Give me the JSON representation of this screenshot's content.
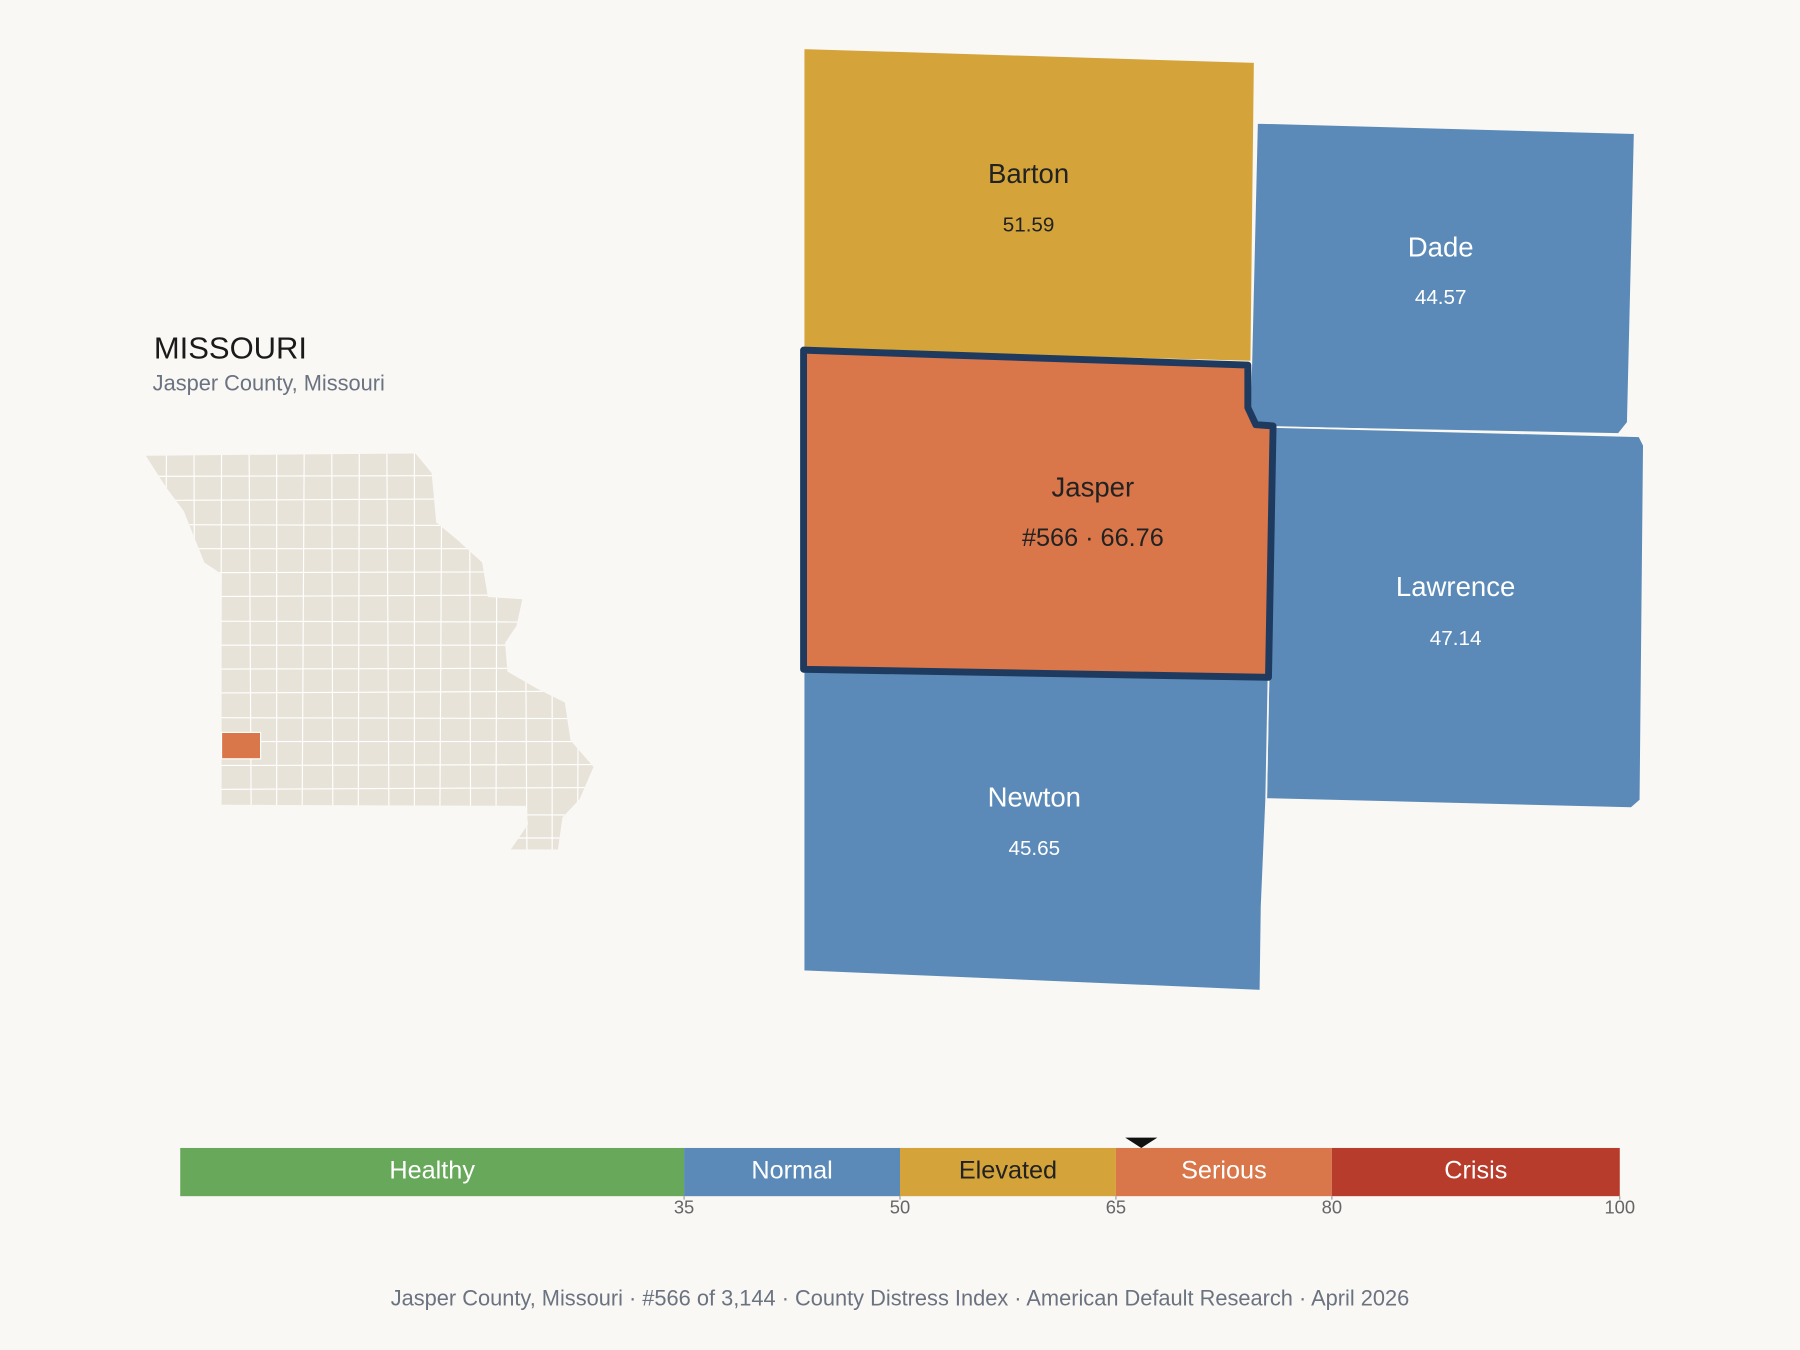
{
  "state": {
    "title": "MISSOURI",
    "subtitle": "Jasper County, Missouri"
  },
  "counties": [
    {
      "name": "Barton",
      "value": 51.59,
      "color": "#d4a43b",
      "label_color": "#222222"
    },
    {
      "name": "Dade",
      "value": 44.57,
      "color": "#5b8ab8",
      "label_color": "#ffffff"
    },
    {
      "name": "Jasper",
      "value": 66.76,
      "value_label": "#566 · 66.76",
      "color": "#d9764a",
      "label_color": "#222222",
      "highlight": true
    },
    {
      "name": "Lawrence",
      "value": 47.14,
      "color": "#5b8ab8",
      "label_color": "#ffffff"
    },
    {
      "name": "Newton",
      "value": 45.65,
      "color": "#5b8ab8",
      "label_color": "#ffffff"
    }
  ],
  "scale": {
    "lim": [
      0,
      100
    ],
    "ticks": [
      35,
      50,
      65,
      80,
      100
    ],
    "bands": [
      {
        "name": "Healthy",
        "color": "#67a85a",
        "label_color": "#ffffff"
      },
      {
        "name": "Normal",
        "color": "#5b8ab8",
        "label_color": "#ffffff"
      },
      {
        "name": "Elevated",
        "color": "#d4a43b",
        "label_color": "#222222"
      },
      {
        "name": "Serious",
        "color": "#d9764a",
        "label_color": "#ffffff"
      },
      {
        "name": "Crisis",
        "color": "#b83c2c",
        "label_color": "#ffffff"
      }
    ]
  },
  "footer": "Jasper County, Missouri  ·  #566 of 3,144  ·  County Distress Index  ·  American Default Research  ·  April 2026"
}
